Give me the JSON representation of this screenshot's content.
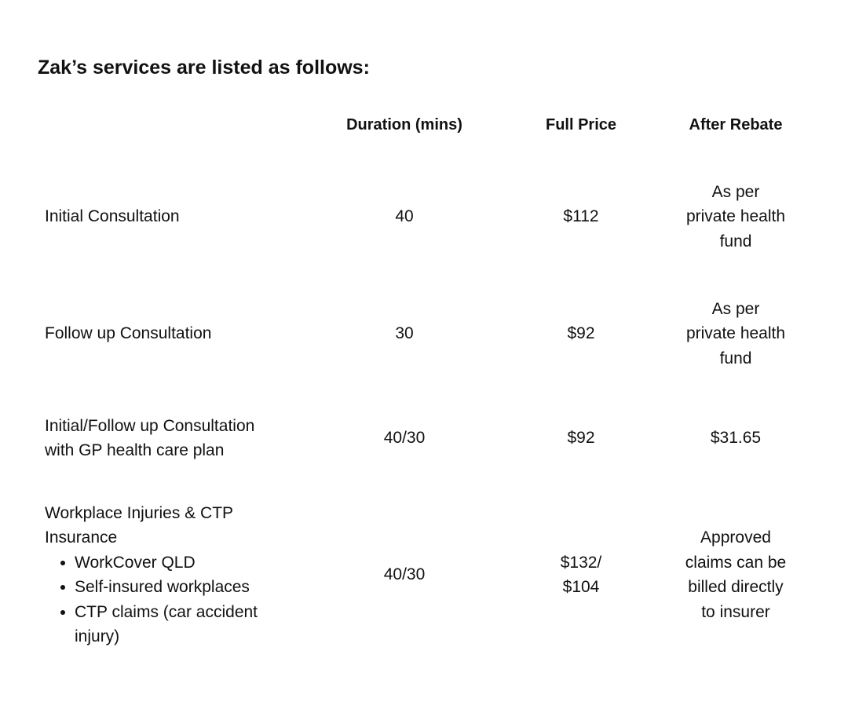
{
  "heading": "Zak’s services are listed as follows:",
  "table": {
    "columns": [
      "Duration (mins)",
      "Full Price",
      "After Rebate"
    ],
    "rows": [
      {
        "service": [
          "Initial Consultation"
        ],
        "duration": [
          "40"
        ],
        "full_price": [
          "$112"
        ],
        "after_rebate": [
          "As per",
          "private health",
          "fund"
        ]
      },
      {
        "service": [
          "Follow up Consultation"
        ],
        "duration": [
          "30"
        ],
        "full_price": [
          "$92"
        ],
        "after_rebate": [
          "As per",
          "private health",
          "fund"
        ]
      },
      {
        "service": [
          "Initial/Follow up Consultation",
          "with GP health care plan"
        ],
        "duration": [
          "40/30"
        ],
        "full_price": [
          "$92"
        ],
        "after_rebate": [
          "$31.65"
        ]
      },
      {
        "service": [
          "Workplace Injuries & CTP",
          "Insurance"
        ],
        "items": [
          [
            "WorkCover QLD"
          ],
          [
            "Self-insured workplaces"
          ],
          [
            "CTP claims (car accident",
            "injury)"
          ]
        ],
        "duration": [
          "40/30"
        ],
        "full_price": [
          "$132/",
          "$104"
        ],
        "after_rebate": [
          "Approved",
          "claims can be",
          "billed directly",
          "to insurer"
        ]
      }
    ]
  }
}
